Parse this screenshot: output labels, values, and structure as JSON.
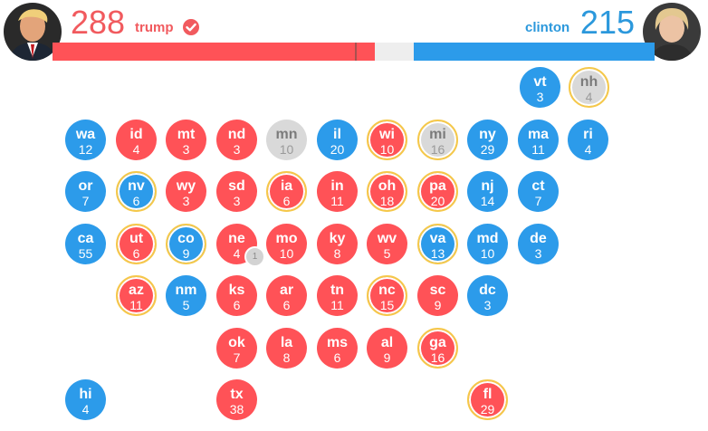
{
  "header": {
    "trump": {
      "count": "288",
      "name": "trump",
      "avatar_icon": "trump-portrait-icon",
      "check_icon": "checkmark-circle-icon"
    },
    "clinton": {
      "count": "215",
      "name": "clinton",
      "avatar_icon": "clinton-portrait-icon"
    }
  },
  "progress": {
    "total_electoral_votes": 538,
    "trump_votes": 288,
    "clinton_votes": 215,
    "undecided_votes": 35,
    "colors": {
      "trump": "#ff5257",
      "clinton": "#2c9bea",
      "undecided": "#eeeeee"
    }
  },
  "colors": {
    "republican": "#ff5257",
    "democrat": "#2c9bea",
    "undecided": "#d9d9d9",
    "battleground_ring": "#f5c84a"
  },
  "states": [
    {
      "abbr": "vt",
      "ev": "3",
      "party": "d",
      "battleground": false
    },
    {
      "abbr": "nh",
      "ev": "4",
      "party": "g",
      "battleground": true
    },
    {
      "abbr": "wa",
      "ev": "12",
      "party": "d",
      "battleground": false
    },
    {
      "abbr": "id",
      "ev": "4",
      "party": "r",
      "battleground": false
    },
    {
      "abbr": "mt",
      "ev": "3",
      "party": "r",
      "battleground": false
    },
    {
      "abbr": "nd",
      "ev": "3",
      "party": "r",
      "battleground": false
    },
    {
      "abbr": "mn",
      "ev": "10",
      "party": "g",
      "battleground": false
    },
    {
      "abbr": "il",
      "ev": "20",
      "party": "d",
      "battleground": false
    },
    {
      "abbr": "wi",
      "ev": "10",
      "party": "r",
      "battleground": true
    },
    {
      "abbr": "mi",
      "ev": "16",
      "party": "g",
      "battleground": true
    },
    {
      "abbr": "ny",
      "ev": "29",
      "party": "d",
      "battleground": false
    },
    {
      "abbr": "ma",
      "ev": "11",
      "party": "d",
      "battleground": false
    },
    {
      "abbr": "ri",
      "ev": "4",
      "party": "d",
      "battleground": false
    },
    {
      "abbr": "or",
      "ev": "7",
      "party": "d",
      "battleground": false
    },
    {
      "abbr": "nv",
      "ev": "6",
      "party": "d",
      "battleground": true
    },
    {
      "abbr": "wy",
      "ev": "3",
      "party": "r",
      "battleground": false
    },
    {
      "abbr": "sd",
      "ev": "3",
      "party": "r",
      "battleground": false
    },
    {
      "abbr": "ia",
      "ev": "6",
      "party": "r",
      "battleground": true
    },
    {
      "abbr": "in",
      "ev": "11",
      "party": "r",
      "battleground": false
    },
    {
      "abbr": "oh",
      "ev": "18",
      "party": "r",
      "battleground": true
    },
    {
      "abbr": "pa",
      "ev": "20",
      "party": "r",
      "battleground": true
    },
    {
      "abbr": "nj",
      "ev": "14",
      "party": "d",
      "battleground": false
    },
    {
      "abbr": "ct",
      "ev": "7",
      "party": "d",
      "battleground": false
    },
    {
      "abbr": "ca",
      "ev": "55",
      "party": "d",
      "battleground": false
    },
    {
      "abbr": "ut",
      "ev": "6",
      "party": "r",
      "battleground": true
    },
    {
      "abbr": "co",
      "ev": "9",
      "party": "d",
      "battleground": true
    },
    {
      "abbr": "ne",
      "ev": "4",
      "party": "r",
      "battleground": false
    },
    {
      "abbr": "mo",
      "ev": "10",
      "party": "r",
      "battleground": false
    },
    {
      "abbr": "ky",
      "ev": "8",
      "party": "r",
      "battleground": false
    },
    {
      "abbr": "wv",
      "ev": "5",
      "party": "r",
      "battleground": false
    },
    {
      "abbr": "va",
      "ev": "13",
      "party": "d",
      "battleground": true
    },
    {
      "abbr": "md",
      "ev": "10",
      "party": "d",
      "battleground": false
    },
    {
      "abbr": "de",
      "ev": "3",
      "party": "d",
      "battleground": false
    },
    {
      "abbr": "az",
      "ev": "11",
      "party": "r",
      "battleground": true
    },
    {
      "abbr": "nm",
      "ev": "5",
      "party": "d",
      "battleground": false
    },
    {
      "abbr": "ks",
      "ev": "6",
      "party": "r",
      "battleground": false
    },
    {
      "abbr": "ar",
      "ev": "6",
      "party": "r",
      "battleground": false
    },
    {
      "abbr": "tn",
      "ev": "11",
      "party": "r",
      "battleground": false
    },
    {
      "abbr": "nc",
      "ev": "15",
      "party": "r",
      "battleground": true
    },
    {
      "abbr": "sc",
      "ev": "9",
      "party": "r",
      "battleground": false
    },
    {
      "abbr": "dc",
      "ev": "3",
      "party": "d",
      "battleground": false
    },
    {
      "abbr": "ok",
      "ev": "7",
      "party": "r",
      "battleground": false
    },
    {
      "abbr": "la",
      "ev": "8",
      "party": "r",
      "battleground": false
    },
    {
      "abbr": "ms",
      "ev": "6",
      "party": "r",
      "battleground": false
    },
    {
      "abbr": "al",
      "ev": "9",
      "party": "r",
      "battleground": false
    },
    {
      "abbr": "ga",
      "ev": "16",
      "party": "r",
      "battleground": true
    },
    {
      "abbr": "hi",
      "ev": "4",
      "party": "d",
      "battleground": false
    },
    {
      "abbr": "tx",
      "ev": "38",
      "party": "r",
      "battleground": false
    },
    {
      "abbr": "fl",
      "ev": "29",
      "party": "r",
      "battleground": true
    }
  ],
  "ne_split_badge": "1"
}
